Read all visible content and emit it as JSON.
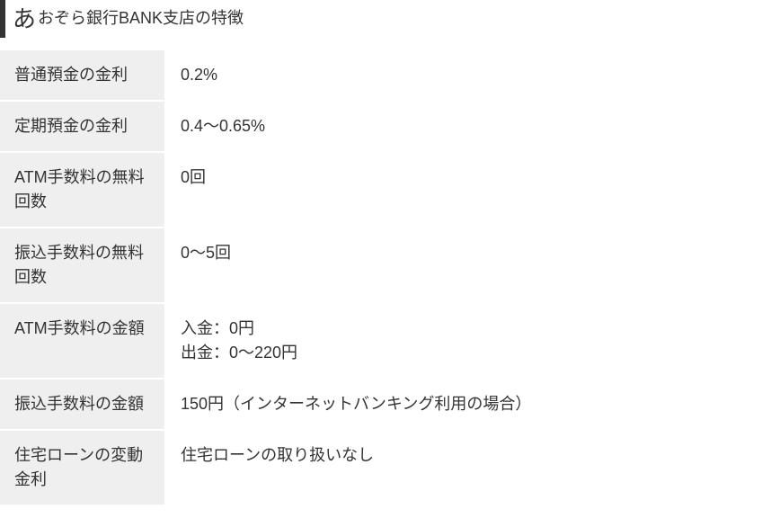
{
  "header": {
    "prefix": "あ",
    "title": "おぞら銀行BANK支店の特徴"
  },
  "table": {
    "rows": [
      {
        "label": "普通預金の金利",
        "value": "0.2%"
      },
      {
        "label": "定期預金の金利",
        "value": "0.4～0.65%"
      },
      {
        "label": "ATM手数料の無料回数",
        "value": "0回"
      },
      {
        "label": "振込手数料の無料回数",
        "value": "0～5回"
      },
      {
        "label": "ATM手数料の金額",
        "value": "入金：0円\n出金：0～220円"
      },
      {
        "label": "振込手数料の金額",
        "value": "150円（インターネットバンキング利用の場合）"
      },
      {
        "label": "住宅ローンの変動金利",
        "value": "住宅ローンの取り扱いなし"
      }
    ],
    "label_bg_color": "#efefef",
    "value_bg_color": "#ffffff",
    "text_color": "#333333",
    "header_border_color": "#333333",
    "font_size_label": 18,
    "font_size_value": 18,
    "label_column_width": 183
  }
}
